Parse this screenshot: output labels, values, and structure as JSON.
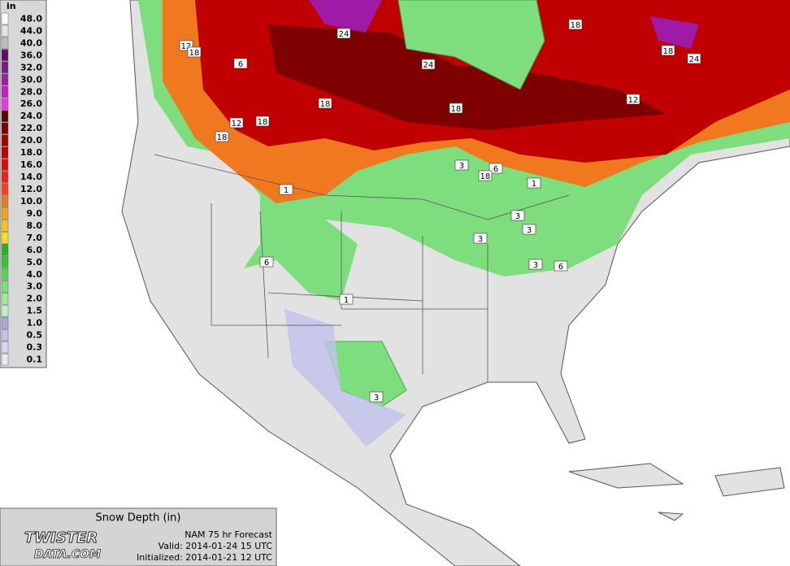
{
  "title": "Snow Depth (in)",
  "model_line": "NAM 75 hr Forecast",
  "valid_line": "Valid: 2014-01-24 15 UTC",
  "initialized_line": "Initialized: 2014-01-21 12 UTC",
  "logo": {
    "line1": "TWISTER",
    "line2": "DATA.COM"
  },
  "legend": {
    "unit": "in",
    "items": [
      {
        "label": "48.0",
        "color": "#ffffff"
      },
      {
        "label": "44.0",
        "color": "#e4e4e4"
      },
      {
        "label": "40.0",
        "color": "#bdbdbd"
      },
      {
        "label": "36.0",
        "color": "#5c1060"
      },
      {
        "label": "32.0",
        "color": "#7a1a86"
      },
      {
        "label": "30.0",
        "color": "#a01aa8"
      },
      {
        "label": "28.0",
        "color": "#c81ec8"
      },
      {
        "label": "26.0",
        "color": "#ee32ee"
      },
      {
        "label": "24.0",
        "color": "#5a0000"
      },
      {
        "label": "22.0",
        "color": "#7e0000"
      },
      {
        "label": "20.0",
        "color": "#a20000"
      },
      {
        "label": "18.0",
        "color": "#c00000"
      },
      {
        "label": "16.0",
        "color": "#dc0a0a"
      },
      {
        "label": "14.0",
        "color": "#f01e1e"
      },
      {
        "label": "12.0",
        "color": "#ff3c1e"
      },
      {
        "label": "10.0",
        "color": "#f0781e"
      },
      {
        "label": "9.0",
        "color": "#f5a01e"
      },
      {
        "label": "8.0",
        "color": "#f7c01e"
      },
      {
        "label": "7.0",
        "color": "#f5e020"
      },
      {
        "label": "6.0",
        "color": "#22b422"
      },
      {
        "label": "5.0",
        "color": "#32c832"
      },
      {
        "label": "4.0",
        "color": "#5ad25a"
      },
      {
        "label": "3.0",
        "color": "#7ede7e"
      },
      {
        "label": "2.0",
        "color": "#a2e8a2"
      },
      {
        "label": "1.5",
        "color": "#c2f0c2"
      },
      {
        "label": "1.0",
        "color": "#a8a8dc"
      },
      {
        "label": "0.5",
        "color": "#c2c2ec"
      },
      {
        "label": "0.3",
        "color": "#d8d8f4"
      },
      {
        "label": "0.1",
        "color": "#ececf4"
      }
    ]
  },
  "contour_labels": [
    "18",
    "24",
    "12",
    "18",
    "6",
    "24",
    "18",
    "24",
    "18",
    "18",
    "12",
    "12",
    "18",
    "18",
    "3",
    "6",
    "18",
    "1",
    "1",
    "3",
    "3",
    "3",
    "6",
    "3",
    "6",
    "1",
    "3"
  ]
}
